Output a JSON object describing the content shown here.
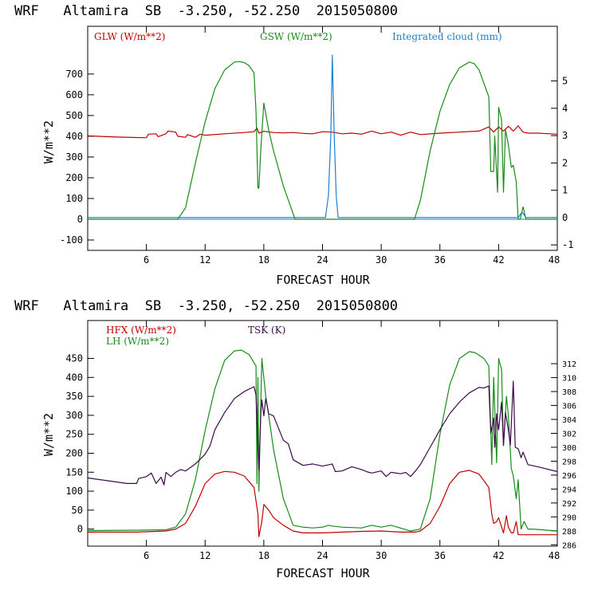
{
  "colors": {
    "red": "#c00000",
    "green": "#1a8a1a",
    "blue": "#1e7fd0",
    "purple": "#3c0a4a"
  },
  "chart_data": [
    {
      "type": "line",
      "title": "WRF   Altamira  SB  -3.250, -52.250  2015050800",
      "xlabel": "FORECAST HOUR",
      "ylabel": "W/m**2",
      "xlim": [
        0,
        48
      ],
      "ylim": [
        -150,
        930
      ],
      "y2lim": [
        -1.2,
        7.0
      ],
      "x_ticks": [
        6,
        12,
        18,
        24,
        30,
        36,
        42,
        48
      ],
      "y_ticks": [
        -100,
        0,
        100,
        200,
        300,
        400,
        500,
        600,
        700
      ],
      "y2_ticks": [
        -1,
        0,
        1,
        2,
        3,
        4,
        5
      ],
      "legend": [
        "GLW (W/m**2)",
        "GSW (W/m**2)",
        "Integrated cloud (mm)"
      ],
      "series": [
        {
          "name": "GLW (W/m**2)",
          "color": "#c00000",
          "axis": "left",
          "x": [
            0,
            3,
            5,
            6,
            6.2,
            7,
            7.2,
            8,
            8.2,
            9,
            9.2,
            10,
            10.2,
            11,
            11.5,
            12,
            14,
            16,
            17,
            17.3,
            17.5,
            18,
            19,
            20,
            21,
            22,
            23,
            24,
            25,
            26,
            27,
            28,
            29,
            30,
            31,
            32,
            33,
            34,
            36,
            38,
            40,
            41,
            41.5,
            42,
            42.5,
            43,
            43.5,
            44,
            44.5,
            45,
            46,
            48
          ],
          "y": [
            402,
            396,
            394,
            393,
            410,
            412,
            398,
            412,
            425,
            420,
            400,
            395,
            408,
            395,
            410,
            405,
            412,
            418,
            422,
            440,
            415,
            424,
            418,
            416,
            418,
            414,
            412,
            422,
            420,
            412,
            415,
            410,
            425,
            412,
            420,
            405,
            420,
            408,
            415,
            420,
            425,
            445,
            420,
            445,
            425,
            448,
            425,
            450,
            420,
            415,
            415,
            410
          ]
        },
        {
          "name": "GSW (W/m**2)",
          "color": "#1a8a1a",
          "axis": "left",
          "x": [
            0,
            9.2,
            10,
            11,
            12,
            13,
            14,
            15,
            15.5,
            16,
            16.5,
            17,
            17.2,
            17.4,
            17.5,
            17.7,
            17.8,
            18,
            18.5,
            19,
            20,
            21.2,
            33.4,
            34,
            35,
            36,
            37,
            38,
            39,
            39.5,
            40,
            41,
            41.2,
            41.5,
            41.6,
            41.9,
            42,
            42.3,
            42.5,
            42.7,
            43,
            43.3,
            43.5,
            43.8,
            44,
            44.2,
            44.5,
            44.8,
            45,
            45.5,
            48
          ],
          "y": [
            0,
            0,
            55,
            270,
            470,
            630,
            720,
            758,
            760,
            755,
            740,
            705,
            520,
            150,
            150,
            340,
            415,
            560,
            430,
            330,
            160,
            0,
            0,
            90,
            330,
            520,
            650,
            730,
            758,
            750,
            720,
            590,
            230,
            230,
            400,
            130,
            540,
            480,
            130,
            430,
            360,
            250,
            260,
            180,
            0,
            0,
            60,
            0,
            0,
            0,
            0
          ]
        },
        {
          "name": "Integrated cloud (mm)",
          "color": "#1e7fd0",
          "axis": "right",
          "x": [
            0,
            6.5,
            7.5,
            24.3,
            24.6,
            24.85,
            25.0,
            25.2,
            25.4,
            25.6,
            29.5,
            30,
            44,
            44.4,
            44.8,
            48
          ],
          "y": [
            0,
            0,
            0,
            0,
            0.8,
            3.0,
            5.95,
            3.0,
            0.8,
            0,
            0,
            0,
            0,
            0.2,
            0,
            0
          ]
        }
      ]
    },
    {
      "type": "line",
      "title": "WRF   Altamira  SB  -3.250, -52.250  2015050800",
      "xlabel": "FORECAST HOUR",
      "ylabel": "W/m**2",
      "xlim": [
        0,
        48
      ],
      "ylim": [
        -45,
        550
      ],
      "y2lim": [
        285.8,
        318.2
      ],
      "x_ticks": [
        6,
        12,
        18,
        24,
        30,
        36,
        42,
        48
      ],
      "y_ticks": [
        0,
        50,
        100,
        150,
        200,
        250,
        300,
        350,
        400,
        450
      ],
      "y2_ticks": [
        286,
        288,
        290,
        292,
        294,
        296,
        298,
        300,
        302,
        304,
        306,
        308,
        310,
        312
      ],
      "legend": [
        "HFX (W/m**2)",
        "LH (W/m**2)",
        "TSK (K)"
      ],
      "series": [
        {
          "name": "HFX (W/m**2)",
          "color": "#c00000",
          "axis": "left",
          "x": [
            0,
            5,
            8,
            9,
            10,
            11,
            12,
            13,
            14,
            15,
            16,
            17,
            17.4,
            17.5,
            17.8,
            18,
            18.5,
            19,
            20,
            21,
            22,
            24,
            26,
            28,
            30,
            32,
            33.5,
            34,
            35,
            36,
            37,
            38,
            39,
            40,
            41,
            41.3,
            41.5,
            41.8,
            42,
            42.5,
            42.8,
            43,
            43.3,
            43.5,
            43.8,
            44,
            44.5,
            45,
            48
          ],
          "y": [
            -8,
            -8,
            -5,
            0,
            15,
            60,
            120,
            145,
            152,
            150,
            140,
            110,
            40,
            -20,
            20,
            65,
            50,
            30,
            10,
            -5,
            -10,
            -10,
            -8,
            -6,
            -5,
            -8,
            -8,
            -5,
            15,
            60,
            120,
            150,
            155,
            145,
            110,
            40,
            15,
            20,
            30,
            -10,
            35,
            5,
            -10,
            -10,
            20,
            -15,
            -15,
            -15,
            -15
          ]
        },
        {
          "name": "LH (W/m**2)",
          "color": "#1a8a1a",
          "axis": "left",
          "x": [
            0,
            5,
            8,
            9,
            10,
            11,
            12,
            13,
            14,
            15,
            15.7,
            16.5,
            17.2,
            17.3,
            17.4,
            17.5,
            17.8,
            18.2,
            18.5,
            19,
            20,
            21,
            22,
            23,
            24,
            24.6,
            25,
            26,
            28,
            29,
            30,
            31,
            33,
            34,
            35,
            36,
            37,
            38,
            39,
            39.6,
            40.5,
            41,
            41.3,
            41.5,
            41.8,
            42,
            42.3,
            42.5,
            42.8,
            43,
            43.3,
            43.5,
            43.8,
            44,
            44.3,
            44.6,
            45,
            45.5,
            48
          ],
          "y": [
            -4,
            -3,
            -2,
            5,
            40,
            130,
            260,
            370,
            445,
            470,
            472,
            460,
            430,
            120,
            400,
            100,
            450,
            350,
            300,
            210,
            80,
            10,
            5,
            3,
            5,
            10,
            8,
            5,
            3,
            10,
            5,
            10,
            -5,
            0,
            80,
            250,
            380,
            450,
            468,
            465,
            450,
            430,
            170,
            400,
            175,
            450,
            420,
            220,
            350,
            300,
            160,
            140,
            80,
            130,
            0,
            20,
            0,
            0,
            -5
          ]
        },
        {
          "name": "TSK (K)",
          "color": "#3c0a4a",
          "axis": "right",
          "x": [
            0,
            2,
            4,
            5,
            5.2,
            6,
            6.5,
            6.8,
            7,
            7.5,
            7.8,
            8,
            8.5,
            9,
            9.5,
            10,
            11,
            12,
            12.5,
            13,
            14,
            15,
            16,
            17,
            17.2,
            17.4,
            17.5,
            17.7,
            17.8,
            18,
            18.2,
            18.5,
            19,
            20,
            20.5,
            21,
            21.5,
            22,
            23,
            24,
            25,
            25.3,
            26,
            27,
            28,
            28.5,
            29,
            30,
            30.5,
            31,
            32,
            32.5,
            33,
            33.5,
            34,
            35,
            36,
            37,
            38,
            39,
            40,
            40.5,
            41,
            41.2,
            41.5,
            41.6,
            41.8,
            42,
            42.3,
            42.5,
            42.7,
            43,
            43.2,
            43.5,
            43.7,
            44,
            44.3,
            44.5,
            45,
            46,
            48
          ],
          "y": [
            295.6,
            295.2,
            294.8,
            294.8,
            295.5,
            295.8,
            296.3,
            295.4,
            294.8,
            295.7,
            294.6,
            296.4,
            295.8,
            296.4,
            296.8,
            296.6,
            297.6,
            299,
            300.2,
            302.5,
            305,
            307,
            308,
            308.7,
            307.5,
            300.5,
            296.8,
            305,
            306.8,
            304.5,
            307,
            304.8,
            304.5,
            301,
            300.5,
            298.2,
            297.8,
            297.4,
            297.6,
            297.3,
            297.6,
            296.5,
            296.6,
            297.2,
            296.8,
            296.5,
            296.3,
            296.6,
            295.8,
            296.4,
            296.2,
            296.4,
            295.8,
            296.6,
            297.5,
            300,
            302.5,
            304.8,
            306.5,
            307.8,
            308.6,
            308.5,
            308.8,
            302,
            304.2,
            300,
            304.8,
            302.5,
            306.5,
            300.3,
            305,
            302.5,
            300.3,
            309.5,
            300,
            299.8,
            298.5,
            299.3,
            297.5,
            297.2,
            296.5
          ]
        }
      ]
    }
  ]
}
